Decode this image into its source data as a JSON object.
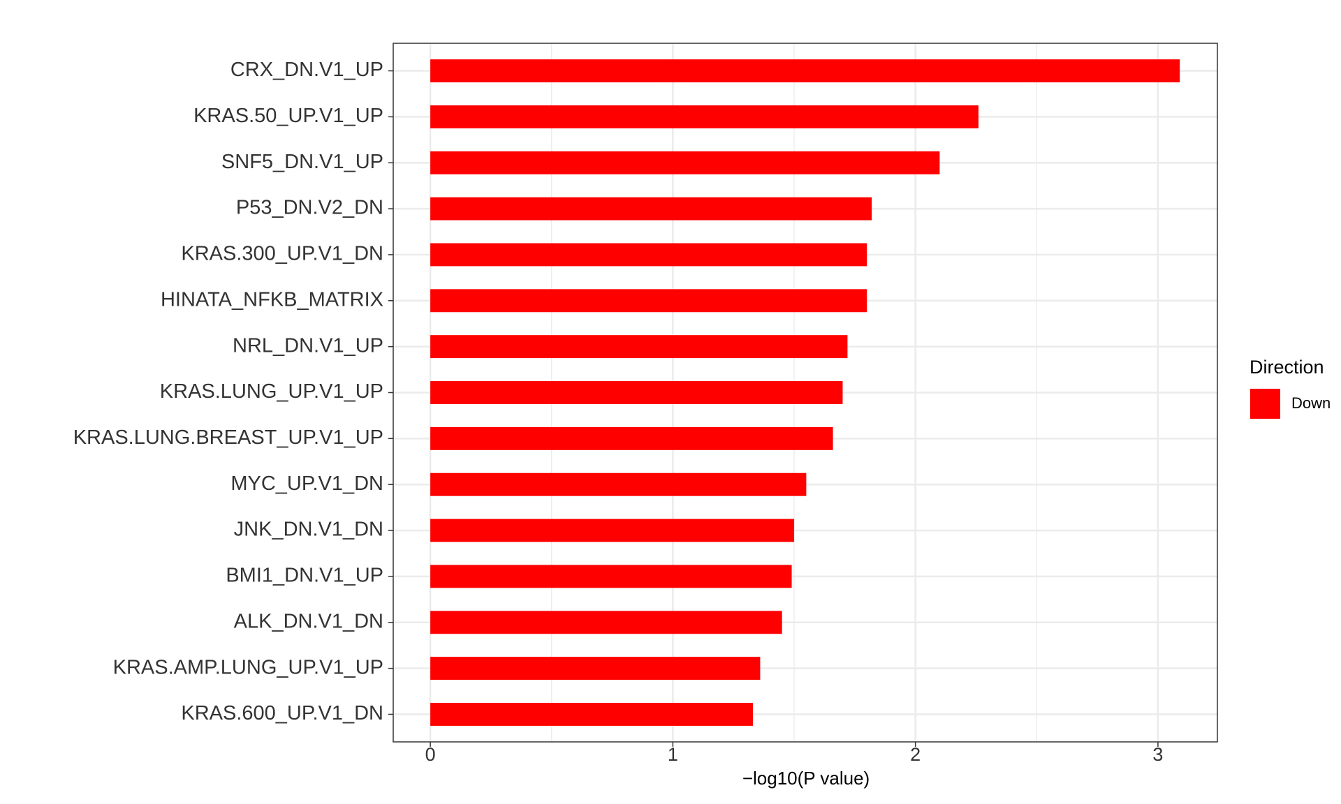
{
  "chart_data": {
    "type": "bar",
    "orientation": "horizontal",
    "x_label": "−log10(P value)",
    "categories": [
      "CRX_DN.V1_UP",
      "KRAS.50_UP.V1_UP",
      "SNF5_DN.V1_UP",
      "P53_DN.V2_DN",
      "KRAS.300_UP.V1_DN",
      "HINATA_NFKB_MATRIX",
      "NRL_DN.V1_UP",
      "KRAS.LUNG_UP.V1_UP",
      "KRAS.LUNG.BREAST_UP.V1_UP",
      "MYC_UP.V1_DN",
      "JNK_DN.V1_DN",
      "BMI1_DN.V1_UP",
      "ALK_DN.V1_DN",
      "KRAS.AMP.LUNG_UP.V1_UP",
      "KRAS.600_UP.V1_DN"
    ],
    "series": [
      {
        "name": "Down",
        "color": "#ff0000",
        "values": [
          3.09,
          2.26,
          2.1,
          1.82,
          1.8,
          1.8,
          1.72,
          1.7,
          1.66,
          1.55,
          1.5,
          1.49,
          1.45,
          1.36,
          1.33
        ]
      }
    ],
    "legend_title": "Direction",
    "legend_position": "right",
    "xlim": [
      -0.153,
      3.245
    ],
    "xticks": [
      0,
      1,
      2,
      3
    ],
    "minor_xticks": [
      0.5,
      1.5,
      2.5
    ],
    "grid": true
  }
}
